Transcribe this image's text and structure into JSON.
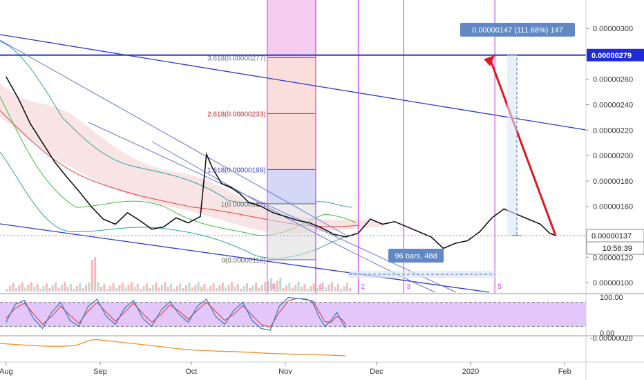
{
  "chart_data": {
    "type": "line",
    "title": "",
    "main_pane": {
      "price_ticks": [
        "0.00000300",
        "0.00000260",
        "0.00000240",
        "0.00000220",
        "0.00000200",
        "0.00000180",
        "0.00000160",
        "0.00000120",
        "0.00000100"
      ],
      "ylim": [
        9.3e-07,
        3.18e-06
      ],
      "fib_levels": [
        {
          "label": "3.618(0.00000277)",
          "value": 2.77e-06
        },
        {
          "label": "2.618(0.00000233)",
          "value": 2.33e-06
        },
        {
          "label": "1.618(0.00000189)",
          "value": 1.89e-06
        },
        {
          "label": "1(0.00000162)",
          "value": 1.62e-06
        },
        {
          "label": "0(0.00000118)",
          "value": 1.18e-06
        }
      ],
      "price_series": [
        {
          "t": 0,
          "v": 2.62e-06
        },
        {
          "t": 4,
          "v": 2.45e-06
        },
        {
          "t": 8,
          "v": 2.25e-06
        },
        {
          "t": 12,
          "v": 2.1e-06
        },
        {
          "t": 16,
          "v": 1.95e-06
        },
        {
          "t": 20,
          "v": 1.83e-06
        },
        {
          "t": 24,
          "v": 1.72e-06
        },
        {
          "t": 28,
          "v": 1.6e-06
        },
        {
          "t": 32,
          "v": 1.5e-06
        },
        {
          "t": 36,
          "v": 1.46e-06
        },
        {
          "t": 40,
          "v": 1.55e-06
        },
        {
          "t": 44,
          "v": 1.49e-06
        },
        {
          "t": 48,
          "v": 1.42e-06
        },
        {
          "t": 52,
          "v": 1.44e-06
        },
        {
          "t": 56,
          "v": 1.51e-06
        },
        {
          "t": 60,
          "v": 1.47e-06
        },
        {
          "t": 64,
          "v": 1.52e-06
        },
        {
          "t": 66,
          "v": 2.01e-06
        },
        {
          "t": 68,
          "v": 1.9e-06
        },
        {
          "t": 71,
          "v": 1.78e-06
        },
        {
          "t": 74,
          "v": 1.75e-06
        },
        {
          "t": 77,
          "v": 1.7e-06
        },
        {
          "t": 80,
          "v": 1.63e-06
        },
        {
          "t": 84,
          "v": 1.6e-06
        },
        {
          "t": 88,
          "v": 1.55e-06
        },
        {
          "t": 92,
          "v": 1.52e-06
        },
        {
          "t": 96,
          "v": 1.49e-06
        },
        {
          "t": 100,
          "v": 1.47e-06
        },
        {
          "t": 104,
          "v": 1.43e-06
        },
        {
          "t": 108,
          "v": 1.38e-06
        },
        {
          "t": 112,
          "v": 1.36e-06
        },
        {
          "t": 116,
          "v": 1.39e-06
        },
        {
          "t": 120,
          "v": 1.5e-06
        },
        {
          "t": 124,
          "v": 1.46e-06
        },
        {
          "t": 128,
          "v": 1.48e-06
        },
        {
          "t": 132,
          "v": 1.44e-06
        },
        {
          "t": 136,
          "v": 1.4e-06
        },
        {
          "t": 140,
          "v": 1.36e-06
        },
        {
          "t": 144,
          "v": 1.27e-06
        },
        {
          "t": 148,
          "v": 1.31e-06
        },
        {
          "t": 152,
          "v": 1.33e-06
        },
        {
          "t": 156,
          "v": 1.4e-06
        },
        {
          "t": 160,
          "v": 1.51e-06
        },
        {
          "t": 164,
          "v": 1.58e-06
        },
        {
          "t": 168,
          "v": 1.54e-06
        },
        {
          "t": 172,
          "v": 1.5e-06
        },
        {
          "t": 176,
          "v": 1.46e-06
        },
        {
          "t": 179,
          "v": 1.39e-06
        },
        {
          "t": 181,
          "v": 1.37e-06
        }
      ],
      "projection_target": 2.79e-06,
      "current_price": 1.37e-06
    },
    "x_axis": {
      "ticks": [
        {
          "label": "Aug",
          "t": 0
        },
        {
          "label": "Sep",
          "t": 31
        },
        {
          "label": "Oct",
          "t": 61
        },
        {
          "label": "Nov",
          "t": 92
        },
        {
          "label": "Dec",
          "t": 122
        },
        {
          "label": "2020",
          "t": 153
        },
        {
          "label": "Feb",
          "t": 184
        }
      ],
      "xlim": [
        -2,
        191
      ]
    },
    "time_zones": [
      {
        "label": "0",
        "t": 86
      },
      {
        "label": "1",
        "t": 102
      },
      {
        "label": "2",
        "t": 116
      },
      {
        "label": "3",
        "t": 131
      },
      {
        "label": "5",
        "t": 161
      }
    ],
    "annotations": {
      "target_label": "0.00000147 (111.68%) 147",
      "target_price_tag": "0.00000279",
      "current_price_tag": "0.00000137",
      "countdown_tag": "10:56:39",
      "bars_label": "96 bars, 48d"
    },
    "stoch_pane": {
      "ticks": [
        "100.00",
        "0.00"
      ],
      "ylim": [
        0,
        100
      ],
      "band": [
        80,
        20
      ],
      "k_series": [
        {
          "t": 0,
          "v": 30
        },
        {
          "t": 3,
          "v": 75
        },
        {
          "t": 6,
          "v": 85
        },
        {
          "t": 9,
          "v": 40
        },
        {
          "t": 12,
          "v": 15
        },
        {
          "t": 15,
          "v": 55
        },
        {
          "t": 18,
          "v": 80
        },
        {
          "t": 21,
          "v": 35
        },
        {
          "t": 24,
          "v": 20
        },
        {
          "t": 27,
          "v": 70
        },
        {
          "t": 30,
          "v": 88
        },
        {
          "t": 33,
          "v": 45
        },
        {
          "t": 36,
          "v": 25
        },
        {
          "t": 39,
          "v": 65
        },
        {
          "t": 42,
          "v": 85
        },
        {
          "t": 45,
          "v": 40
        },
        {
          "t": 48,
          "v": 20
        },
        {
          "t": 51,
          "v": 60
        },
        {
          "t": 54,
          "v": 82
        },
        {
          "t": 57,
          "v": 50
        },
        {
          "t": 60,
          "v": 30
        },
        {
          "t": 63,
          "v": 70
        },
        {
          "t": 66,
          "v": 88
        },
        {
          "t": 69,
          "v": 45
        },
        {
          "t": 72,
          "v": 25
        },
        {
          "t": 75,
          "v": 60
        },
        {
          "t": 78,
          "v": 80
        },
        {
          "t": 81,
          "v": 35
        },
        {
          "t": 84,
          "v": 15
        },
        {
          "t": 87,
          "v": 10
        },
        {
          "t": 90,
          "v": 70
        },
        {
          "t": 93,
          "v": 92
        },
        {
          "t": 96,
          "v": 90
        },
        {
          "t": 99,
          "v": 88
        },
        {
          "t": 101,
          "v": 80
        },
        {
          "t": 103,
          "v": 45
        },
        {
          "t": 105,
          "v": 20
        },
        {
          "t": 107,
          "v": 35
        },
        {
          "t": 109,
          "v": 55
        },
        {
          "t": 111,
          "v": 25
        },
        {
          "t": 112,
          "v": 15
        }
      ],
      "d_series": [
        {
          "t": 0,
          "v": 40
        },
        {
          "t": 3,
          "v": 65
        },
        {
          "t": 6,
          "v": 78
        },
        {
          "t": 9,
          "v": 52
        },
        {
          "t": 12,
          "v": 25
        },
        {
          "t": 15,
          "v": 45
        },
        {
          "t": 18,
          "v": 70
        },
        {
          "t": 21,
          "v": 48
        },
        {
          "t": 24,
          "v": 28
        },
        {
          "t": 27,
          "v": 58
        },
        {
          "t": 30,
          "v": 80
        },
        {
          "t": 33,
          "v": 55
        },
        {
          "t": 36,
          "v": 33
        },
        {
          "t": 39,
          "v": 55
        },
        {
          "t": 42,
          "v": 78
        },
        {
          "t": 45,
          "v": 52
        },
        {
          "t": 48,
          "v": 30
        },
        {
          "t": 51,
          "v": 50
        },
        {
          "t": 54,
          "v": 74
        },
        {
          "t": 57,
          "v": 58
        },
        {
          "t": 60,
          "v": 38
        },
        {
          "t": 63,
          "v": 60
        },
        {
          "t": 66,
          "v": 80
        },
        {
          "t": 69,
          "v": 58
        },
        {
          "t": 72,
          "v": 35
        },
        {
          "t": 75,
          "v": 50
        },
        {
          "t": 78,
          "v": 72
        },
        {
          "t": 81,
          "v": 48
        },
        {
          "t": 84,
          "v": 25
        },
        {
          "t": 87,
          "v": 18
        },
        {
          "t": 90,
          "v": 55
        },
        {
          "t": 93,
          "v": 84
        },
        {
          "t": 96,
          "v": 90
        },
        {
          "t": 99,
          "v": 86
        },
        {
          "t": 101,
          "v": 84
        },
        {
          "t": 103,
          "v": 58
        },
        {
          "t": 105,
          "v": 32
        },
        {
          "t": 107,
          "v": 30
        },
        {
          "t": 109,
          "v": 45
        },
        {
          "t": 111,
          "v": 35
        },
        {
          "t": 112,
          "v": 22
        }
      ]
    },
    "lower_pane": {
      "tick": "-0.00000020"
    }
  },
  "colors": {
    "fib_zone_pink": "#f3c7ee",
    "fib_zone_red": "#f7d6d3",
    "fib_zone_blue": "#cfd4f5",
    "time_zone_line": "#d946ef",
    "trend_blue": "#2c3acb",
    "arrow_red": "#e3141d",
    "price_line": "#111111",
    "stoch_band": "#e3c7fa",
    "stoch_k": "#2b7bc9",
    "stoch_d": "#e24a4a",
    "lower_line": "#f28c28",
    "tag_blue": "#6188c4",
    "axis_text": "#333333"
  }
}
